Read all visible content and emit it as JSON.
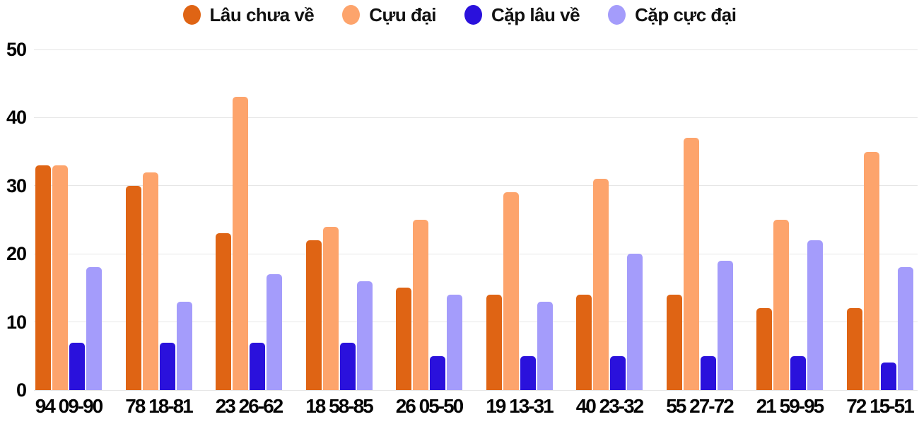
{
  "chart_data": {
    "type": "bar",
    "title": "",
    "xlabel": "",
    "ylabel": "",
    "categories": [
      "94 09-90",
      "78 18-81",
      "23 26-62",
      "18 58-85",
      "26 05-50",
      "19 13-31",
      "40 23-32",
      "55 27-72",
      "21 59-95",
      "72 15-51"
    ],
    "series": [
      {
        "name": "Lâu chưa về",
        "color": "#df6414",
        "values": [
          33,
          30,
          23,
          22,
          15,
          14,
          14,
          14,
          12,
          12
        ]
      },
      {
        "name": "Cựu đại",
        "color": "#fda46c",
        "values": [
          33,
          32,
          43,
          24,
          25,
          29,
          31,
          37,
          25,
          35
        ]
      },
      {
        "name": "Cặp lâu về",
        "color": "#2a11dc",
        "values": [
          7,
          7,
          7,
          7,
          5,
          5,
          5,
          5,
          5,
          4
        ]
      },
      {
        "name": "Cặp cực đại",
        "color": "#a49cfb",
        "values": [
          18,
          13,
          17,
          16,
          14,
          13,
          20,
          19,
          22,
          18
        ]
      }
    ],
    "ylim": [
      0,
      50
    ],
    "yticks": [
      0,
      10,
      20,
      30,
      40,
      50
    ],
    "grid": "horizontal-only",
    "legend_position": "top-center",
    "background": "#ffffff",
    "gridline_color": "#e6e6e6",
    "label_color": "#000000"
  }
}
